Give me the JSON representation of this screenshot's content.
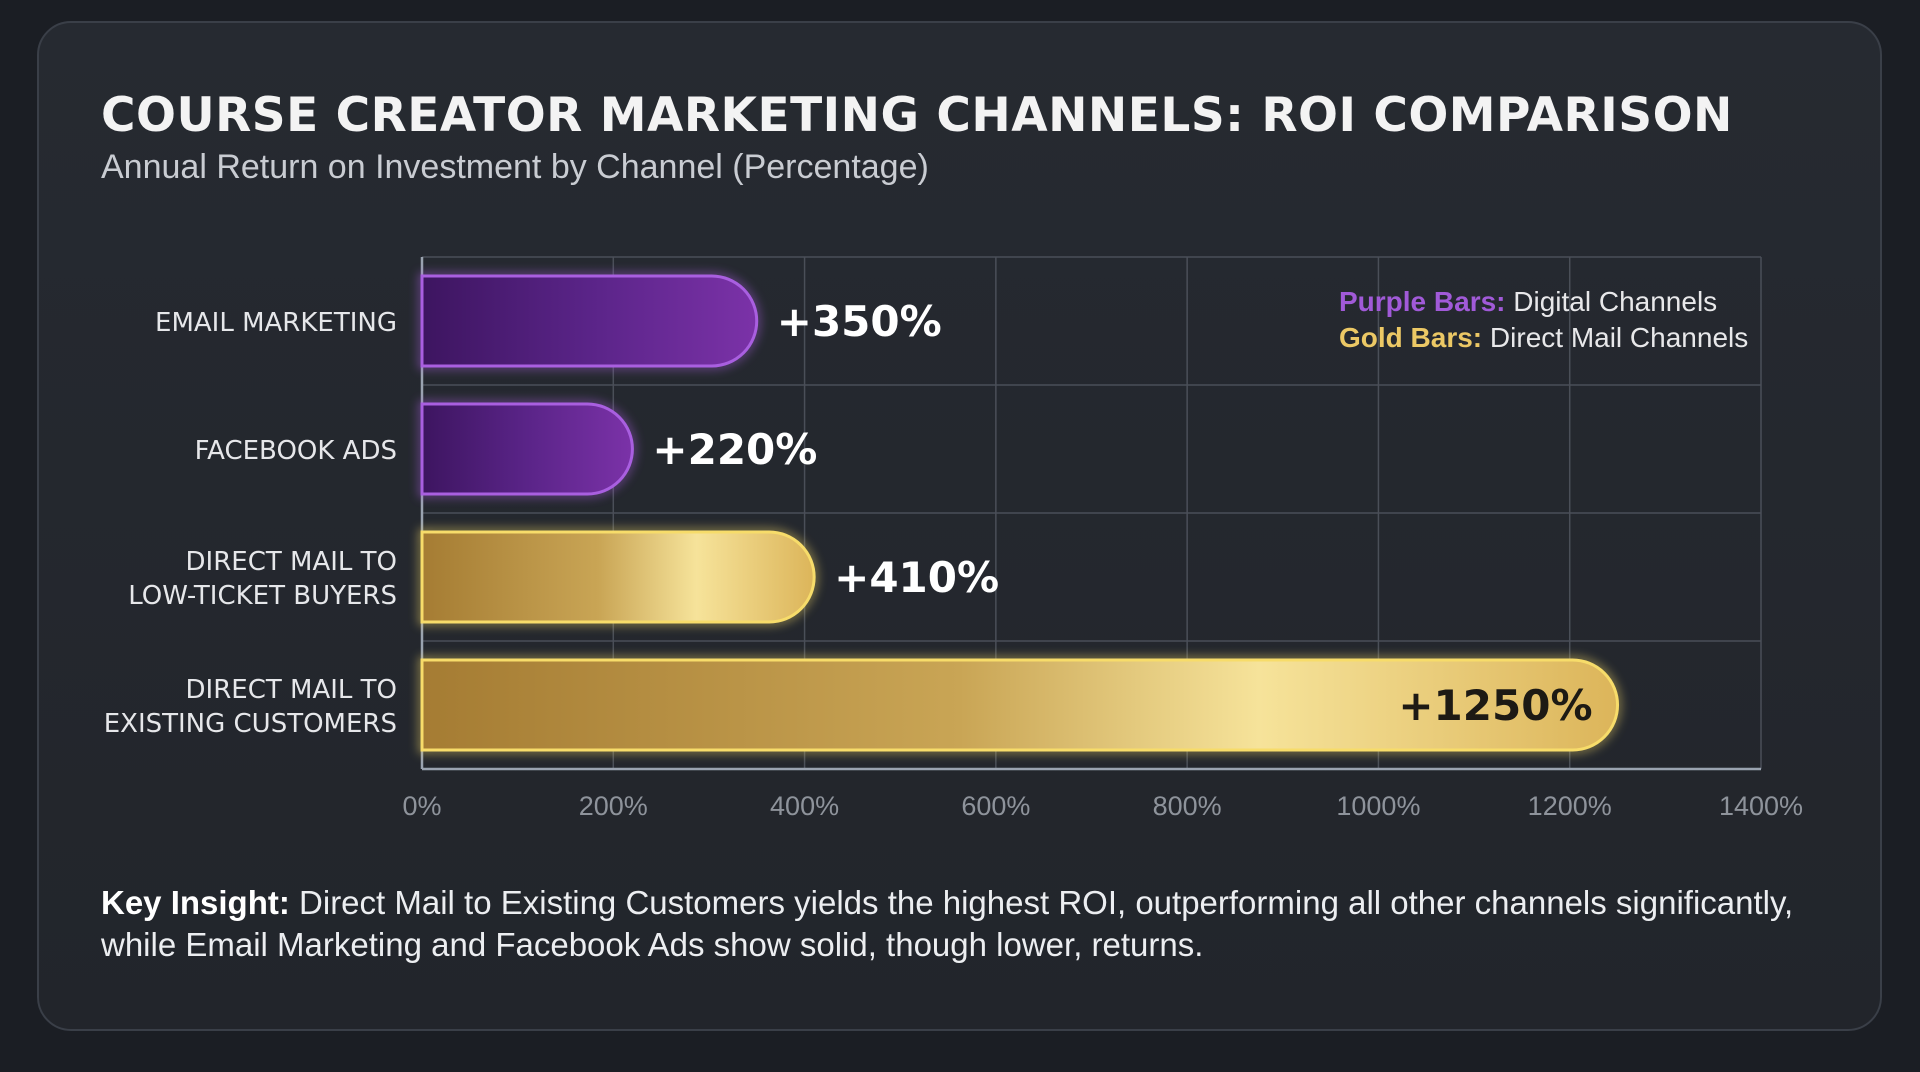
{
  "chart_data": {
    "type": "bar",
    "orientation": "horizontal",
    "title": "COURSE CREATOR MARKETING CHANNELS: ROI COMPARISON",
    "subtitle": "Annual Return on Investment by Channel (Percentage)",
    "categories": [
      [
        "EMAIL MARKETING"
      ],
      [
        "FACEBOOK ADS"
      ],
      [
        "DIRECT MAIL TO",
        "LOW-TICKET BUYERS"
      ],
      [
        "DIRECT MAIL TO",
        "EXISTING CUSTOMERS"
      ]
    ],
    "values": [
      350,
      220,
      410,
      1250
    ],
    "data_labels": [
      "+350%",
      "+220%",
      "+410%",
      "+1250%"
    ],
    "bar_groups": [
      "digital",
      "digital",
      "direct-mail",
      "direct-mail"
    ],
    "xlim": [
      0,
      1400
    ],
    "x_ticks": [
      "0%",
      "200%",
      "400%",
      "600%",
      "800%",
      "1000%",
      "1200%",
      "1400%"
    ],
    "grid": true,
    "legend": {
      "placement": "top-right",
      "items": [
        {
          "key": "Purple Bars:",
          "text": "Digital Channels",
          "color": "#a15ad8"
        },
        {
          "key": "Gold Bars:",
          "text": "Direct Mail Channels",
          "color": "#ecc865"
        }
      ]
    },
    "colors": {
      "digital": "#7a2fa8",
      "direct-mail": "#e2bd5c"
    }
  },
  "insight": {
    "label": "Key Insight:",
    "text": " Direct Mail to Existing Customers yields the highest ROI, outperforming all other channels significantly, while Email Marketing and Facebook Ads show solid, though lower, returns."
  }
}
